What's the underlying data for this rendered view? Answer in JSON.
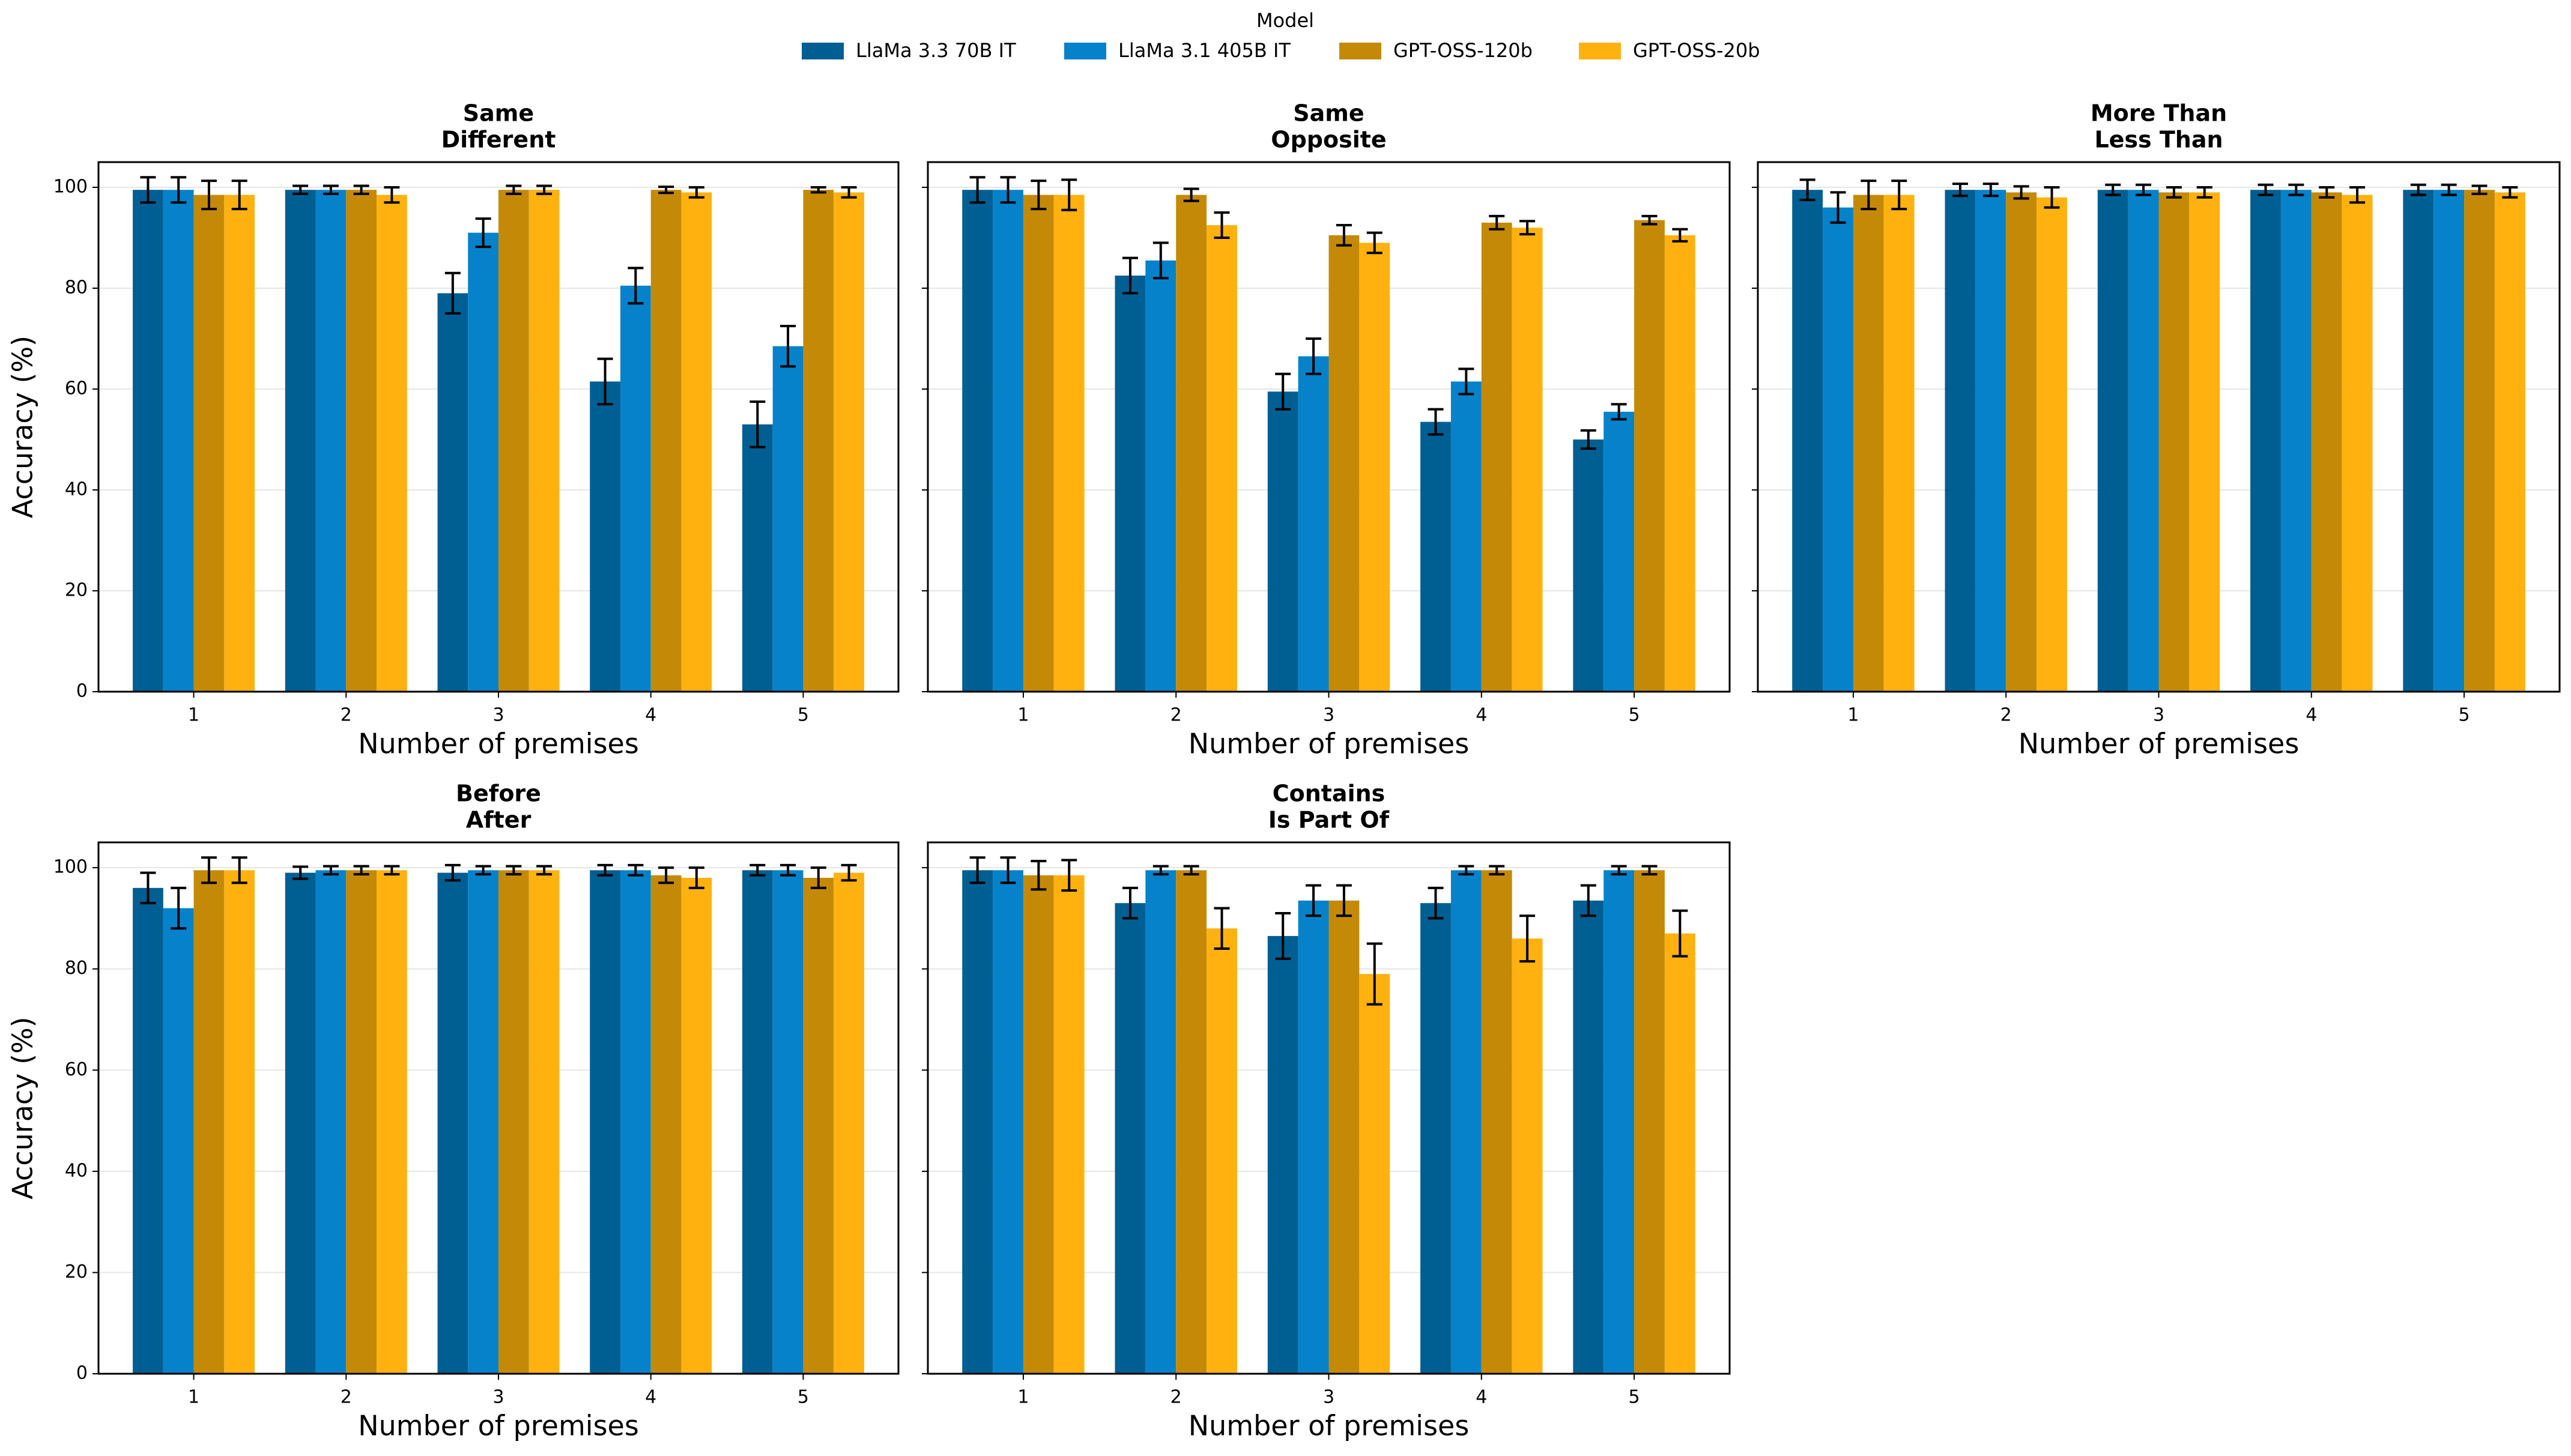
{
  "legend_title": "Model",
  "chart_data": [
    {
      "type": "bar",
      "title": [
        "Same",
        "Different"
      ],
      "xlabel": "Number of premises",
      "ylabel": "Accuracy (%)",
      "categories": [
        "1",
        "2",
        "3",
        "4",
        "5"
      ],
      "ylim": [
        0,
        105
      ],
      "yticks": [
        0,
        20,
        40,
        60,
        80,
        100
      ],
      "ytick_labels": true,
      "grid": true,
      "series": [
        {
          "name": "LlaMa 3.3 70B IT",
          "color": "#005f92",
          "values": [
            99.5,
            99.5,
            79,
            61.5,
            53
          ],
          "errors": [
            2.5,
            0.8,
            4,
            4.5,
            4.5
          ]
        },
        {
          "name": "LlaMa 3.1 405B IT",
          "color": "#0582ca",
          "values": [
            99.5,
            99.5,
            91,
            80.5,
            68.5
          ],
          "errors": [
            2.5,
            0.8,
            2.8,
            3.5,
            4
          ]
        },
        {
          "name": "GPT-OSS-120b",
          "color": "#c48a07",
          "values": [
            98.5,
            99.5,
            99.5,
            99.5,
            99.5
          ],
          "errors": [
            2.8,
            0.8,
            0.8,
            0.6,
            0.5
          ]
        },
        {
          "name": "GPT-OSS-20b",
          "color": "#ffb20f",
          "values": [
            98.5,
            98.5,
            99.5,
            99,
            99
          ],
          "errors": [
            2.8,
            1.5,
            0.8,
            1,
            1
          ]
        }
      ]
    },
    {
      "type": "bar",
      "title": [
        "Same",
        "Opposite"
      ],
      "xlabel": "Number of premises",
      "categories": [
        "1",
        "2",
        "3",
        "4",
        "5"
      ],
      "ylim": [
        0,
        105
      ],
      "yticks": [
        0,
        20,
        40,
        60,
        80,
        100
      ],
      "ytick_labels": false,
      "grid": true,
      "series": [
        {
          "name": "LlaMa 3.3 70B IT",
          "color": "#005f92",
          "values": [
            99.5,
            82.5,
            59.5,
            53.5,
            50
          ],
          "errors": [
            2.5,
            3.5,
            3.5,
            2.5,
            1.8
          ]
        },
        {
          "name": "LlaMa 3.1 405B IT",
          "color": "#0582ca",
          "values": [
            99.5,
            85.5,
            66.5,
            61.5,
            55.5
          ],
          "errors": [
            2.5,
            3.5,
            3.5,
            2.5,
            1.5
          ]
        },
        {
          "name": "GPT-OSS-120b",
          "color": "#c48a07",
          "values": [
            98.5,
            98.5,
            90.5,
            93,
            93.5
          ],
          "errors": [
            2.8,
            1.2,
            2,
            1.3,
            0.8
          ]
        },
        {
          "name": "GPT-OSS-20b",
          "color": "#ffb20f",
          "values": [
            98.5,
            92.5,
            89,
            92,
            90.5
          ],
          "errors": [
            3,
            2.5,
            2,
            1.3,
            1.2
          ]
        }
      ]
    },
    {
      "type": "bar",
      "title": [
        "More Than",
        "Less Than"
      ],
      "xlabel": "Number of premises",
      "categories": [
        "1",
        "2",
        "3",
        "4",
        "5"
      ],
      "ylim": [
        0,
        105
      ],
      "yticks": [
        0,
        20,
        40,
        60,
        80,
        100
      ],
      "ytick_labels": false,
      "grid": true,
      "series": [
        {
          "name": "LlaMa 3.3 70B IT",
          "color": "#005f92",
          "values": [
            99.5,
            99.5,
            99.5,
            99.5,
            99.5
          ],
          "errors": [
            2,
            1.2,
            1,
            1,
            1
          ]
        },
        {
          "name": "LlaMa 3.1 405B IT",
          "color": "#0582ca",
          "values": [
            96,
            99.5,
            99.5,
            99.5,
            99.5
          ],
          "errors": [
            3,
            1.2,
            1,
            1,
            1
          ]
        },
        {
          "name": "GPT-OSS-120b",
          "color": "#c48a07",
          "values": [
            98.5,
            99,
            99,
            99,
            99.5
          ],
          "errors": [
            2.8,
            1.2,
            1,
            1,
            0.8
          ]
        },
        {
          "name": "GPT-OSS-20b",
          "color": "#ffb20f",
          "values": [
            98.5,
            98,
            99,
            98.5,
            99
          ],
          "errors": [
            2.8,
            2,
            1,
            1.5,
            1
          ]
        }
      ]
    },
    {
      "type": "bar",
      "title": [
        "Before",
        "After"
      ],
      "xlabel": "Number of premises",
      "ylabel": "Accuracy (%)",
      "categories": [
        "1",
        "2",
        "3",
        "4",
        "5"
      ],
      "ylim": [
        0,
        105
      ],
      "yticks": [
        0,
        20,
        40,
        60,
        80,
        100
      ],
      "ytick_labels": true,
      "grid": true,
      "series": [
        {
          "name": "LlaMa 3.3 70B IT",
          "color": "#005f92",
          "values": [
            96,
            99,
            99,
            99.5,
            99.5
          ],
          "errors": [
            3,
            1.2,
            1.5,
            1,
            1
          ]
        },
        {
          "name": "LlaMa 3.1 405B IT",
          "color": "#0582ca",
          "values": [
            92,
            99.5,
            99.5,
            99.5,
            99.5
          ],
          "errors": [
            4,
            0.8,
            0.8,
            1,
            1
          ]
        },
        {
          "name": "GPT-OSS-120b",
          "color": "#c48a07",
          "values": [
            99.5,
            99.5,
            99.5,
            98.5,
            98
          ],
          "errors": [
            2.5,
            0.8,
            0.8,
            1.5,
            2
          ]
        },
        {
          "name": "GPT-OSS-20b",
          "color": "#ffb20f",
          "values": [
            99.5,
            99.5,
            99.5,
            98,
            99
          ],
          "errors": [
            2.5,
            0.8,
            0.8,
            2,
            1.5
          ]
        }
      ]
    },
    {
      "type": "bar",
      "title": [
        "Contains",
        "Is Part Of"
      ],
      "xlabel": "Number of premises",
      "categories": [
        "1",
        "2",
        "3",
        "4",
        "5"
      ],
      "ylim": [
        0,
        105
      ],
      "yticks": [
        0,
        20,
        40,
        60,
        80,
        100
      ],
      "ytick_labels": false,
      "grid": true,
      "series": [
        {
          "name": "LlaMa 3.3 70B IT",
          "color": "#005f92",
          "values": [
            99.5,
            93,
            86.5,
            93,
            93.5
          ],
          "errors": [
            2.5,
            3,
            4.5,
            3,
            3
          ]
        },
        {
          "name": "LlaMa 3.1 405B IT",
          "color": "#0582ca",
          "values": [
            99.5,
            99.5,
            93.5,
            99.5,
            99.5
          ],
          "errors": [
            2.5,
            0.8,
            3,
            0.8,
            0.8
          ]
        },
        {
          "name": "GPT-OSS-120b",
          "color": "#c48a07",
          "values": [
            98.5,
            99.5,
            93.5,
            99.5,
            99.5
          ],
          "errors": [
            2.8,
            0.8,
            3,
            0.8,
            0.8
          ]
        },
        {
          "name": "GPT-OSS-20b",
          "color": "#ffb20f",
          "values": [
            98.5,
            88,
            79,
            86,
            87
          ],
          "errors": [
            3,
            4,
            6,
            4.5,
            4.5
          ]
        }
      ]
    }
  ]
}
